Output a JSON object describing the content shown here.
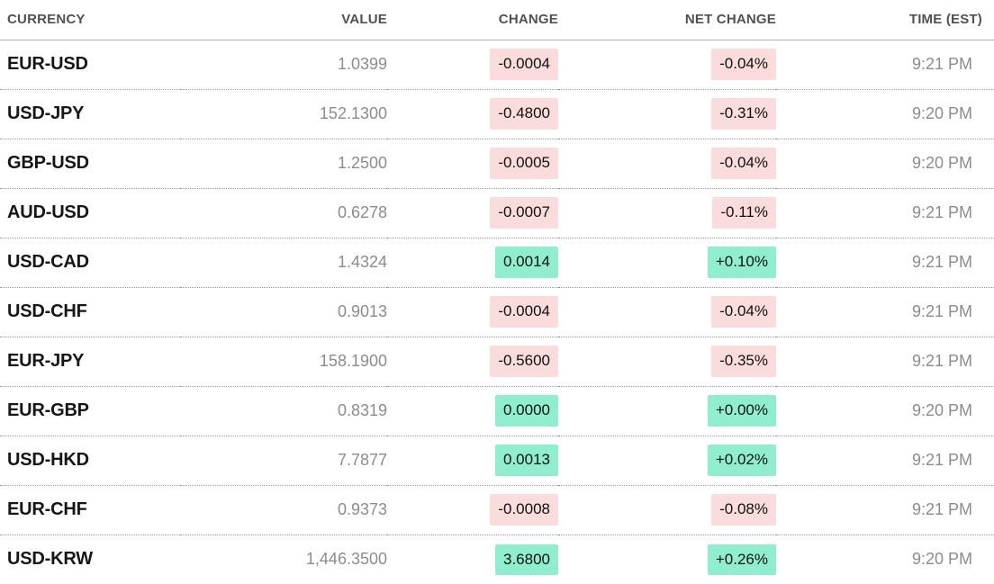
{
  "colors": {
    "negative_bg": "#fbdcdc",
    "positive_bg": "#8feecd",
    "currency_text": "#161616",
    "muted_text": "#8c8c8c",
    "header_text": "#515151",
    "header_border": "#b0b0b0",
    "row_divider": "#9a9a9a"
  },
  "chart_data": {
    "type": "table",
    "title": "Currency quotes table",
    "columns": [
      "CURRENCY",
      "VALUE",
      "CHANGE",
      "NET CHANGE",
      "TIME (EST)"
    ],
    "rows": [
      {
        "currency": "EUR-USD",
        "value": "1.0399",
        "change": "-0.0004",
        "net_change": "-0.04%",
        "time": "9:21 PM",
        "direction": "negative"
      },
      {
        "currency": "USD-JPY",
        "value": "152.1300",
        "change": "-0.4800",
        "net_change": "-0.31%",
        "time": "9:20 PM",
        "direction": "negative"
      },
      {
        "currency": "GBP-USD",
        "value": "1.2500",
        "change": "-0.0005",
        "net_change": "-0.04%",
        "time": "9:20 PM",
        "direction": "negative"
      },
      {
        "currency": "AUD-USD",
        "value": "0.6278",
        "change": "-0.0007",
        "net_change": "-0.11%",
        "time": "9:21 PM",
        "direction": "negative"
      },
      {
        "currency": "USD-CAD",
        "value": "1.4324",
        "change": "0.0014",
        "net_change": "+0.10%",
        "time": "9:21 PM",
        "direction": "positive"
      },
      {
        "currency": "USD-CHF",
        "value": "0.9013",
        "change": "-0.0004",
        "net_change": "-0.04%",
        "time": "9:21 PM",
        "direction": "negative"
      },
      {
        "currency": "EUR-JPY",
        "value": "158.1900",
        "change": "-0.5600",
        "net_change": "-0.35%",
        "time": "9:21 PM",
        "direction": "negative"
      },
      {
        "currency": "EUR-GBP",
        "value": "0.8319",
        "change": "0.0000",
        "net_change": "+0.00%",
        "time": "9:20 PM",
        "direction": "positive"
      },
      {
        "currency": "USD-HKD",
        "value": "7.7877",
        "change": "0.0013",
        "net_change": "+0.02%",
        "time": "9:21 PM",
        "direction": "positive"
      },
      {
        "currency": "EUR-CHF",
        "value": "0.9373",
        "change": "-0.0008",
        "net_change": "-0.08%",
        "time": "9:21 PM",
        "direction": "negative"
      },
      {
        "currency": "USD-KRW",
        "value": "1,446.3500",
        "change": "3.6800",
        "net_change": "+0.26%",
        "time": "9:20 PM",
        "direction": "positive"
      }
    ]
  }
}
